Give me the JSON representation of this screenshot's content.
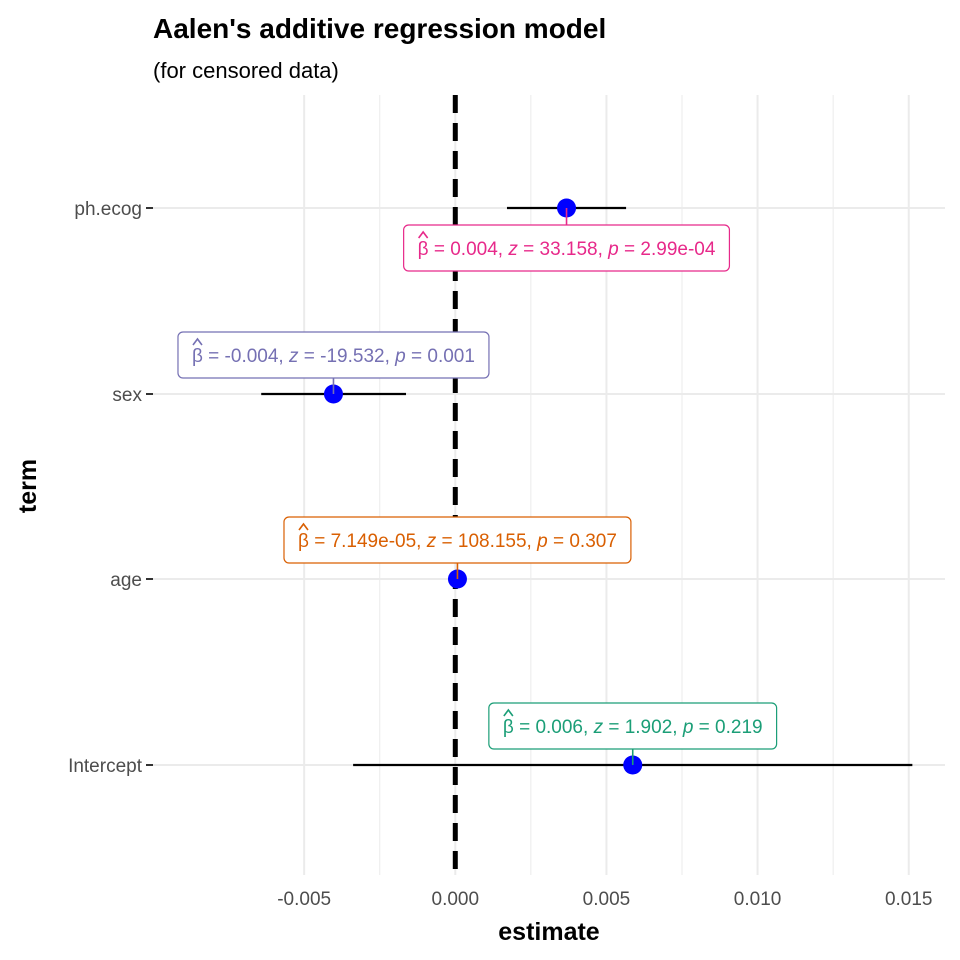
{
  "chart_data": {
    "type": "forest",
    "title": "Aalen's additive regression model",
    "subtitle": "(for censored data)",
    "xlabel": "estimate",
    "ylabel": "term",
    "xlim": [
      -0.01,
      0.0162
    ],
    "xticks": [
      -0.005,
      0.0,
      0.005,
      0.01,
      0.015
    ],
    "xtick_labels": [
      "-0.005",
      "0.000",
      "0.005",
      "0.010",
      "0.015"
    ],
    "reference_line": 0,
    "grid": true,
    "point_color": "#0000ff",
    "terms": [
      {
        "term": "Intercept",
        "estimate": 0.00587,
        "conf_low": -0.00338,
        "conf_high": 0.01512,
        "label": {
          "beta": "0.006",
          "z": "1.902",
          "p": "0.219"
        },
        "label_color": "#1b9e77",
        "label_position": "above"
      },
      {
        "term": "age",
        "estimate": 7.15e-05,
        "conf_low": 7.15e-05,
        "conf_high": 7.15e-05,
        "label": {
          "beta": "7.149e-05",
          "z": "108.155",
          "p": "0.307"
        },
        "label_color": "#d95f02",
        "label_position": "above"
      },
      {
        "term": "sex",
        "estimate": -0.00403,
        "conf_low": -0.00642,
        "conf_high": -0.00163,
        "label": {
          "beta": "-0.004",
          "z": "-19.532",
          "p": "0.001"
        },
        "label_color": "#7570b3",
        "label_position": "above"
      },
      {
        "term": "ph.ecog",
        "estimate": 0.00368,
        "conf_low": 0.00171,
        "conf_high": 0.00565,
        "label": {
          "beta": "0.004",
          "z": "33.158",
          "p": "2.99e-04"
        },
        "label_color": "#e7298a",
        "label_position": "below"
      }
    ]
  }
}
